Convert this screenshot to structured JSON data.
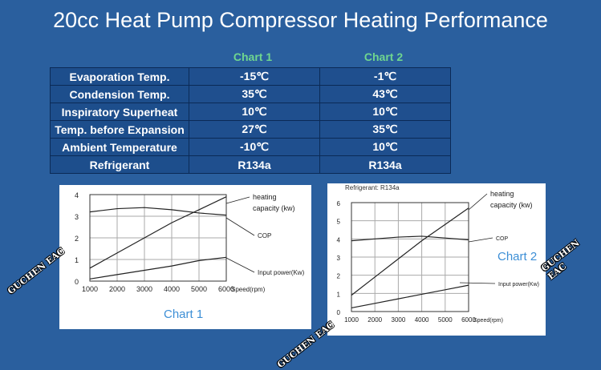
{
  "title": "20cc Heat Pump Compressor Heating Performance",
  "table": {
    "columns": [
      "Chart 1",
      "Chart 2"
    ],
    "rows": [
      {
        "label": "Evaporation Temp.",
        "values": [
          "-15℃",
          "-1℃"
        ]
      },
      {
        "label": "Condension Temp.",
        "values": [
          "35℃",
          "43℃"
        ]
      },
      {
        "label": "Inspiratory Superheat",
        "values": [
          "10℃",
          "10℃"
        ]
      },
      {
        "label": "Temp. before Expansion",
        "values": [
          "27℃",
          "35℃"
        ]
      },
      {
        "label": "Ambient Temperature",
        "values": [
          "-10℃",
          "10℃"
        ]
      },
      {
        "label": "Refrigerant",
        "values": [
          "R134a",
          "R134a"
        ]
      }
    ]
  },
  "watermark": "GUCHEN EAC",
  "colors": {
    "background": "#2a5f9e",
    "caption": "#3d8fd6",
    "header_green": "#6fd68f"
  },
  "chart_data": [
    {
      "type": "line",
      "title": "Chart 1",
      "subtitle": "",
      "xlabel": "Speed(rpm)",
      "x": [
        1000,
        2000,
        3000,
        4000,
        5000,
        6000
      ],
      "xlim": [
        1000,
        6000
      ],
      "ylim": [
        0,
        4
      ],
      "yticks": [
        0,
        1,
        2,
        3,
        4
      ],
      "grid": true,
      "series": [
        {
          "name": "heating capacity (kw)",
          "values": [
            0.6,
            1.3,
            2.0,
            2.7,
            3.3,
            3.9
          ]
        },
        {
          "name": "COP",
          "values": [
            3.2,
            3.35,
            3.4,
            3.3,
            3.15,
            3.05
          ]
        },
        {
          "name": "Input power(Kw)",
          "values": [
            0.1,
            0.3,
            0.5,
            0.7,
            0.95,
            1.1
          ]
        }
      ]
    },
    {
      "type": "line",
      "title": "Chart 2",
      "subtitle": "Refrigerant: R134a",
      "xlabel": "Speed(rpm)",
      "x": [
        1000,
        2000,
        3000,
        4000,
        5000,
        6000
      ],
      "xlim": [
        1000,
        6000
      ],
      "ylim": [
        0,
        6
      ],
      "yticks": [
        0,
        1,
        2,
        3,
        4,
        5,
        6
      ],
      "grid": true,
      "series": [
        {
          "name": "heating capacity (kw)",
          "values": [
            0.9,
            1.9,
            2.9,
            3.9,
            4.8,
            5.7
          ]
        },
        {
          "name": "COP",
          "values": [
            3.9,
            4.0,
            4.1,
            4.15,
            4.05,
            3.95
          ]
        },
        {
          "name": "Input power(Kw)",
          "values": [
            0.2,
            0.45,
            0.7,
            0.95,
            1.2,
            1.45
          ]
        }
      ]
    }
  ]
}
